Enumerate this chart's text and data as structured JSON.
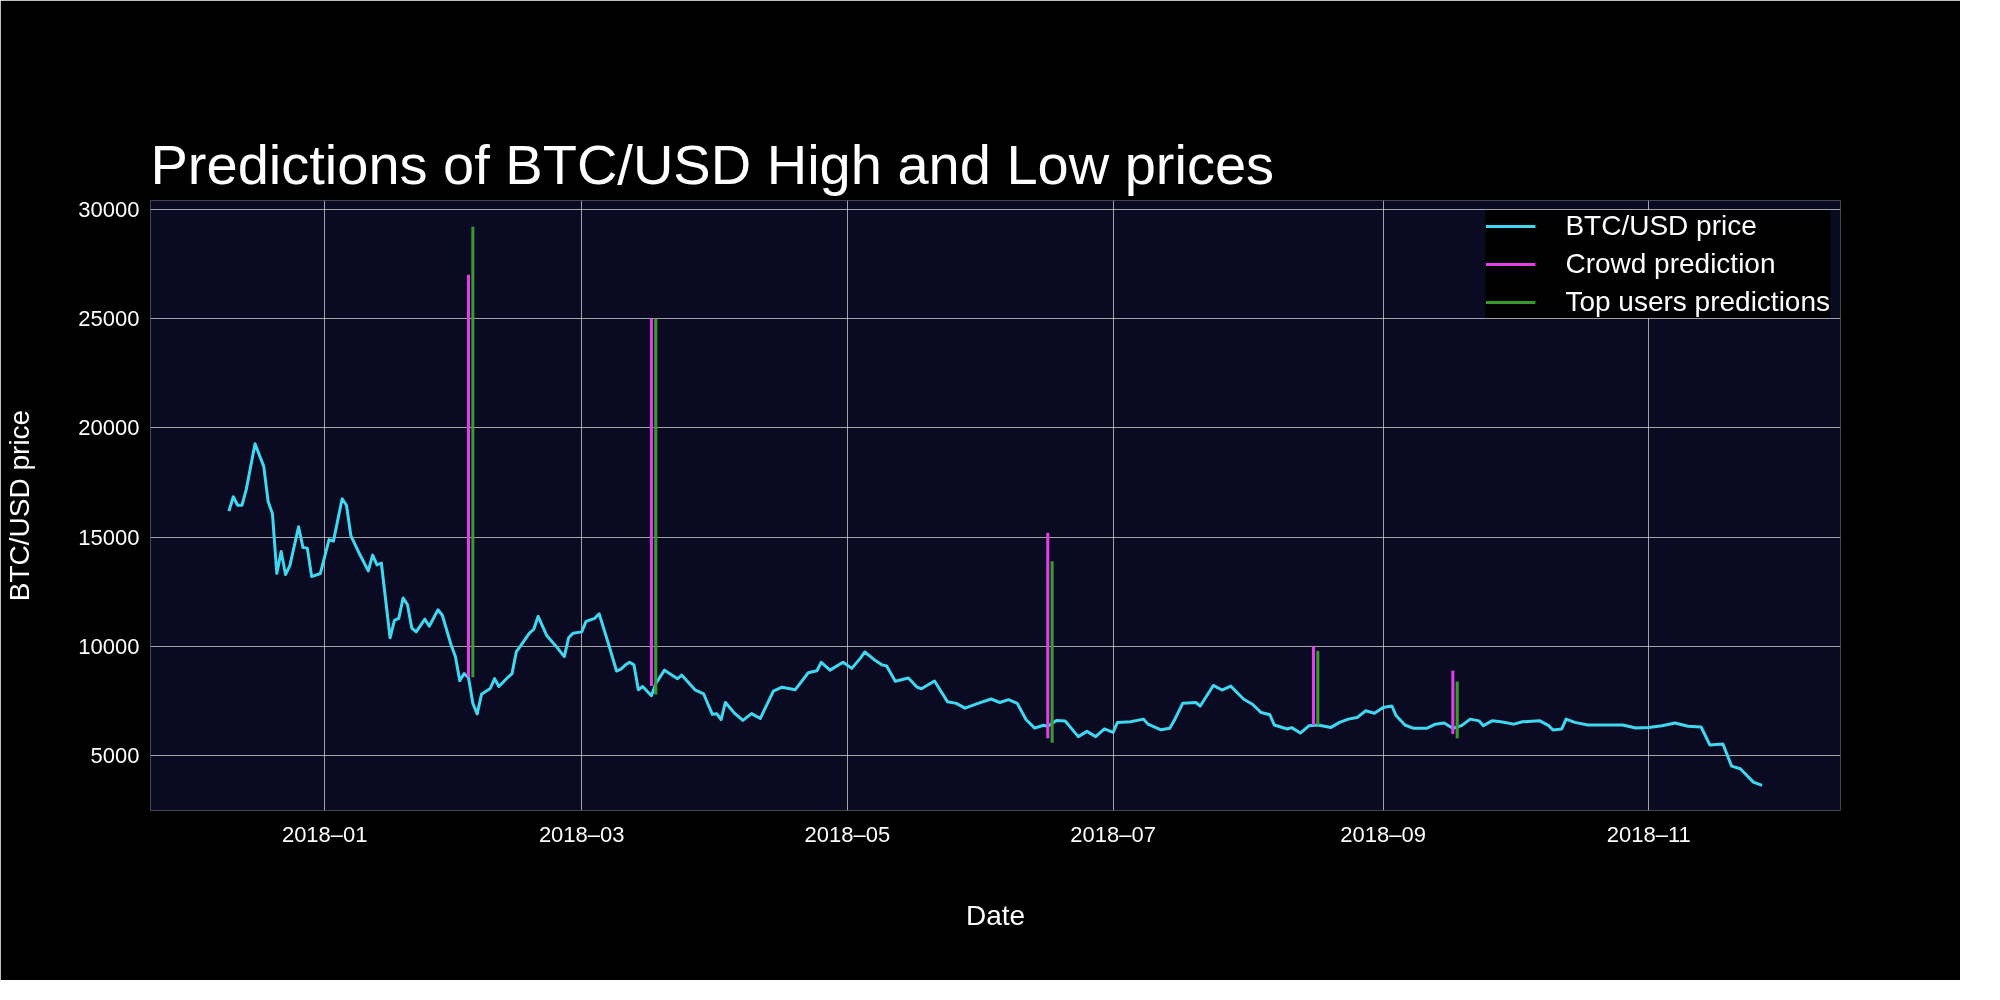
{
  "chart_data": {
    "type": "line",
    "title": "Predictions of BTC/USD High and Low prices",
    "xlabel": "Date",
    "ylabel": "BTC/USD price",
    "xlim": [
      "2017-11-22",
      "2018-12-15"
    ],
    "ylim": [
      2500,
      30400
    ],
    "xticks": [
      {
        "value": "2018-01-01",
        "label": "2018–01"
      },
      {
        "value": "2018-03-01",
        "label": "2018–03"
      },
      {
        "value": "2018-05-01",
        "label": "2018–05"
      },
      {
        "value": "2018-07-01",
        "label": "2018–07"
      },
      {
        "value": "2018-09-01",
        "label": "2018–09"
      },
      {
        "value": "2018-11-01",
        "label": "2018–11"
      }
    ],
    "yticks": [
      5000,
      10000,
      15000,
      20000,
      25000,
      30000
    ],
    "grid": true,
    "legend": "top right",
    "line_style": "solid",
    "series": [
      {
        "name": "BTC/USD price",
        "color": "#3fd8f0",
        "x": [
          "2017-12-10",
          "2017-12-11",
          "2017-12-12",
          "2017-12-13",
          "2017-12-14",
          "2017-12-16",
          "2017-12-18",
          "2017-12-19",
          "2017-12-20",
          "2017-12-21",
          "2017-12-22",
          "2017-12-23",
          "2017-12-24",
          "2017-12-26",
          "2017-12-27",
          "2017-12-28",
          "2017-12-29",
          "2017-12-31",
          "2018-01-02",
          "2018-01-03",
          "2018-01-05",
          "2018-01-06",
          "2018-01-07",
          "2018-01-09",
          "2018-01-11",
          "2018-01-12",
          "2018-01-13",
          "2018-01-14",
          "2018-01-16",
          "2018-01-17",
          "2018-01-18",
          "2018-01-19",
          "2018-01-20",
          "2018-01-21",
          "2018-01-22",
          "2018-01-24",
          "2018-01-25",
          "2018-01-27",
          "2018-01-28",
          "2018-01-30",
          "2018-01-31",
          "2018-02-01",
          "2018-02-02",
          "2018-02-03",
          "2018-02-04",
          "2018-02-05",
          "2018-02-06",
          "2018-02-08",
          "2018-02-09",
          "2018-02-10",
          "2018-02-12",
          "2018-02-13",
          "2018-02-14",
          "2018-02-15",
          "2018-02-17",
          "2018-02-18",
          "2018-02-19",
          "2018-02-21",
          "2018-02-23",
          "2018-02-25",
          "2018-02-26",
          "2018-02-27",
          "2018-03-01",
          "2018-03-02",
          "2018-03-04",
          "2018-03-05",
          "2018-03-07",
          "2018-03-09",
          "2018-03-10",
          "2018-03-11",
          "2018-03-12",
          "2018-03-13",
          "2018-03-14",
          "2018-03-15",
          "2018-03-17",
          "2018-03-18",
          "2018-03-20",
          "2018-03-23",
          "2018-03-24",
          "2018-03-27",
          "2018-03-29",
          "2018-03-31",
          "2018-04-01",
          "2018-04-02",
          "2018-04-03",
          "2018-04-05",
          "2018-04-07",
          "2018-04-09",
          "2018-04-11",
          "2018-04-14",
          "2018-04-16",
          "2018-04-19",
          "2018-04-22",
          "2018-04-24",
          "2018-04-25",
          "2018-04-27",
          "2018-04-30",
          "2018-05-02",
          "2018-05-04",
          "2018-05-05",
          "2018-05-07",
          "2018-05-09",
          "2018-05-10",
          "2018-05-12",
          "2018-05-15",
          "2018-05-17",
          "2018-05-18",
          "2018-05-21",
          "2018-05-24",
          "2018-05-26",
          "2018-05-28",
          "2018-05-31",
          "2018-06-03",
          "2018-06-05",
          "2018-06-07",
          "2018-06-09",
          "2018-06-11",
          "2018-06-13",
          "2018-06-15",
          "2018-06-16",
          "2018-06-18",
          "2018-06-20",
          "2018-06-22",
          "2018-06-23",
          "2018-06-25",
          "2018-06-27",
          "2018-06-29",
          "2018-07-01",
          "2018-07-02",
          "2018-07-05",
          "2018-07-08",
          "2018-07-09",
          "2018-07-12",
          "2018-07-14",
          "2018-07-15",
          "2018-07-17",
          "2018-07-20",
          "2018-07-21",
          "2018-07-22",
          "2018-07-24",
          "2018-07-26",
          "2018-07-28",
          "2018-07-31",
          "2018-08-02",
          "2018-08-04",
          "2018-08-06",
          "2018-08-07",
          "2018-08-10",
          "2018-08-11",
          "2018-08-13",
          "2018-08-15",
          "2018-08-17",
          "2018-08-20",
          "2018-08-22",
          "2018-08-24",
          "2018-08-26",
          "2018-08-28",
          "2018-08-30",
          "2018-09-01",
          "2018-09-03",
          "2018-09-04",
          "2018-09-06",
          "2018-09-08",
          "2018-09-11",
          "2018-09-13",
          "2018-09-15",
          "2018-09-17",
          "2018-09-19",
          "2018-09-21",
          "2018-09-23",
          "2018-09-24",
          "2018-09-26",
          "2018-09-28",
          "2018-10-01",
          "2018-10-03",
          "2018-10-07",
          "2018-10-09",
          "2018-10-10",
          "2018-10-12",
          "2018-10-13",
          "2018-10-15",
          "2018-10-18",
          "2018-10-22",
          "2018-10-26",
          "2018-10-29",
          "2018-11-01",
          "2018-11-04",
          "2018-11-07",
          "2018-11-10",
          "2018-11-13",
          "2018-11-15",
          "2018-11-18",
          "2018-11-20",
          "2018-11-22",
          "2018-11-25",
          "2018-11-27"
        ],
        "values": [
          16190,
          16850,
          16460,
          16460,
          17200,
          19270,
          18240,
          16640,
          16070,
          13340,
          14350,
          13290,
          13700,
          15480,
          14530,
          14500,
          13200,
          13340,
          14890,
          14820,
          16760,
          16460,
          15070,
          14230,
          13460,
          14180,
          13730,
          13820,
          10400,
          11200,
          11290,
          12220,
          11910,
          10840,
          10670,
          11250,
          10930,
          11680,
          11430,
          10080,
          9540,
          8440,
          8760,
          8580,
          7400,
          6920,
          7820,
          8080,
          8530,
          8170,
          8580,
          8760,
          9770,
          10040,
          10610,
          10790,
          11380,
          10490,
          10040,
          9540,
          10400,
          10610,
          10670,
          11150,
          11290,
          11500,
          10220,
          8880,
          8970,
          9150,
          9280,
          9160,
          8020,
          8170,
          7750,
          8300,
          8920,
          8530,
          8690,
          8020,
          7830,
          6900,
          6930,
          6660,
          7440,
          6970,
          6620,
          6930,
          6710,
          7960,
          8140,
          8020,
          8800,
          8890,
          9280,
          8920,
          9280,
          9000,
          9470,
          9750,
          9420,
          9160,
          9110,
          8410,
          8560,
          8140,
          8070,
          8420,
          7470,
          7400,
          7180,
          7400,
          7600,
          7440,
          7570,
          7400,
          6660,
          6270,
          6400,
          6350,
          6620,
          6590,
          6120,
          5880,
          6120,
          5880,
          6230,
          6070,
          6530,
          6560,
          6680,
          6450,
          6190,
          6260,
          6600,
          7410,
          7440,
          7280,
          7590,
          8220,
          8010,
          8190,
          7590,
          7360,
          6980,
          6880,
          6410,
          6230,
          6290,
          6040,
          6380,
          6410,
          6300,
          6530,
          6680,
          6750,
          7060,
          6950,
          7210,
          7280,
          6830,
          6410,
          6260,
          6260,
          6450,
          6500,
          6260,
          6380,
          6680,
          6600,
          6380,
          6600,
          6560,
          6450,
          6560,
          6600,
          6380,
          6180,
          6230,
          6680,
          6530,
          6410,
          6410,
          6410,
          6270,
          6300,
          6380,
          6500,
          6350,
          6320,
          5500,
          5540,
          4530,
          4410,
          3800,
          3650
        ]
      },
      {
        "name": "Crowd prediction",
        "type": "bar",
        "color": "#e040e8",
        "x": [
          "2018-02-03",
          "2018-03-17",
          "2018-06-16",
          "2018-08-16",
          "2018-09-17"
        ],
        "base": [
          8600,
          8200,
          5800,
          6400,
          6000
        ],
        "values": [
          18400,
          16800,
          9400,
          3600,
          2900
        ]
      },
      {
        "name": "Top users predictions",
        "type": "bar",
        "color": "#3a9a30",
        "x": [
          "2018-02-04",
          "2018-03-18",
          "2018-06-17",
          "2018-08-17",
          "2018-09-18"
        ],
        "base": [
          8600,
          7800,
          5600,
          6400,
          5800
        ],
        "values": [
          20600,
          17200,
          8300,
          3400,
          2600
        ]
      }
    ]
  }
}
